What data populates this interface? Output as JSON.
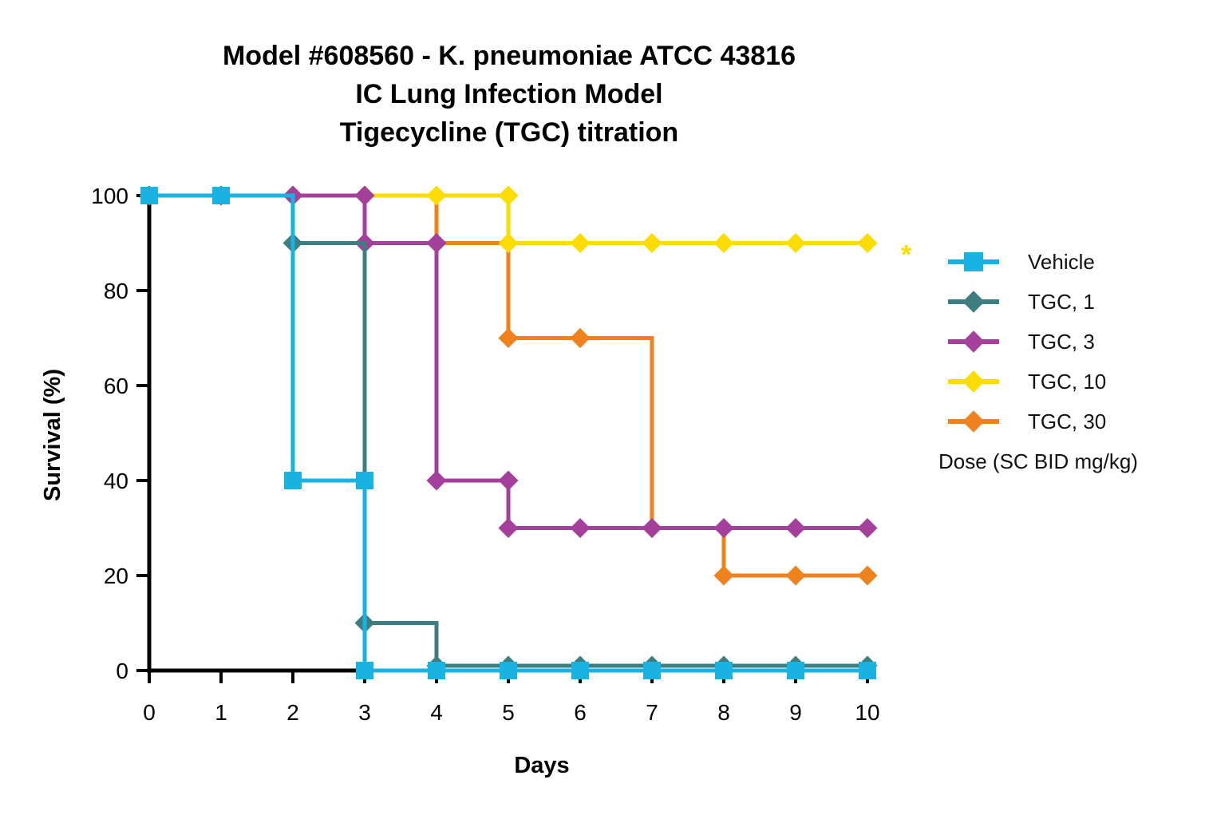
{
  "chart_data": {
    "type": "line",
    "title_lines": [
      "Model #608560 - K. pneumoniae ATCC 43816",
      "IC Lung Infection Model",
      "Tigecycline (TGC) titration"
    ],
    "xlabel": "Days",
    "ylabel": "Survival (%)",
    "xlim": [
      0,
      10
    ],
    "ylim": [
      0,
      100
    ],
    "x_ticks": [
      0,
      1,
      2,
      3,
      4,
      5,
      6,
      7,
      8,
      9,
      10
    ],
    "y_ticks": [
      0,
      20,
      40,
      60,
      80,
      100
    ],
    "step": true,
    "grid": false,
    "legend_position": "right",
    "legend_note": "Dose (SC BID mg/kg)",
    "annotation": {
      "text": "*",
      "series": "TGC, 10"
    },
    "series": [
      {
        "name": "Vehicle",
        "color": "#1AB2E0",
        "marker": "square",
        "x": [
          0,
          1,
          2,
          3,
          4,
          5,
          6,
          7,
          8,
          9,
          10
        ],
        "y": [
          100,
          100,
          40,
          0,
          0,
          0,
          0,
          0,
          0,
          0,
          0
        ],
        "step_from": [
          100,
          100,
          100,
          40,
          0,
          0,
          0,
          0,
          0,
          0,
          0
        ]
      },
      {
        "name": "TGC, 1",
        "color": "#3D7F80",
        "marker": "diamond",
        "x": [
          0,
          1,
          2,
          3,
          4,
          5,
          6,
          7,
          8,
          9,
          10
        ],
        "y": [
          100,
          100,
          90,
          10,
          0,
          0,
          0,
          0,
          0,
          0,
          0
        ]
      },
      {
        "name": "TGC, 3",
        "color": "#A43F9C",
        "marker": "diamond",
        "x": [
          0,
          1,
          2,
          3,
          4,
          5,
          6,
          7,
          8,
          9,
          10
        ],
        "y": [
          100,
          100,
          100,
          90,
          40,
          30,
          30,
          30,
          30,
          30,
          30
        ],
        "extra_points": [
          [
            3,
            100
          ],
          [
            4,
            90
          ],
          [
            5,
            40
          ]
        ]
      },
      {
        "name": "TGC, 10",
        "color": "#FDDC00",
        "marker": "diamond",
        "x": [
          0,
          1,
          2,
          3,
          4,
          5,
          6,
          7,
          8,
          9,
          10
        ],
        "y": [
          100,
          100,
          100,
          100,
          100,
          90,
          90,
          90,
          90,
          90,
          90
        ],
        "extra_points": [
          [
            5,
            100
          ]
        ]
      },
      {
        "name": "TGC, 30",
        "color": "#F0821E",
        "marker": "diamond",
        "x": [
          0,
          1,
          2,
          3,
          4,
          5,
          6,
          7,
          8,
          9,
          10
        ],
        "y": [
          100,
          100,
          100,
          100,
          90,
          70,
          70,
          30,
          20,
          20,
          20
        ],
        "extra_points": [
          [
            6,
            70
          ]
        ]
      }
    ]
  }
}
